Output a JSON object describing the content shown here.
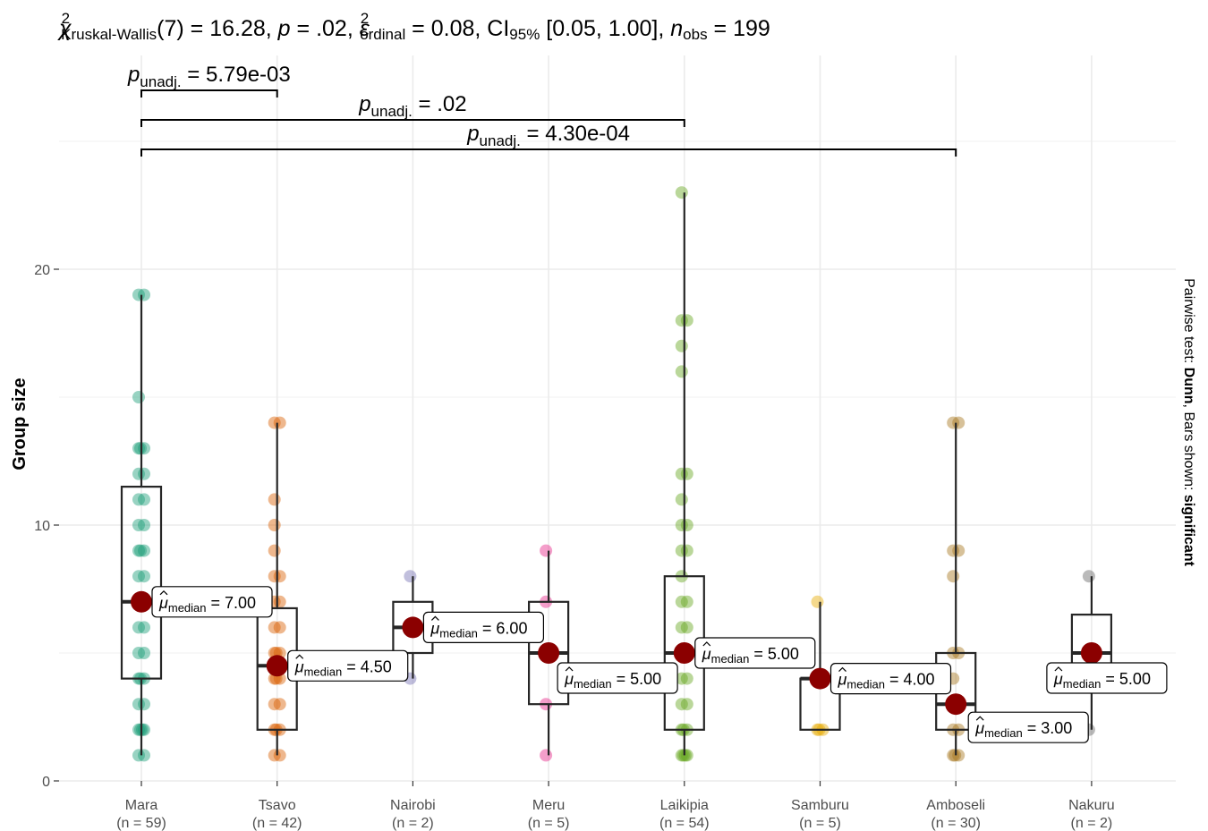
{
  "chart_data": {
    "type": "box",
    "title": {
      "stat_symbol": "χ",
      "stat_sub": "Kruskal-Wallis",
      "df_text": "(7) = 16.28, ",
      "p_text": "p",
      "p_value_text": " = .02, ",
      "effect_symbol": "ε",
      "effect_sub": "ordinal",
      "effect_text": " = 0.08, CI",
      "ci_sub": "95%",
      "ci_text": " [0.05, 1.00], ",
      "n_text": "n",
      "n_sub": "obs",
      "n_value_text": " = 199",
      "sup2": "2"
    },
    "ylabel": "Group size",
    "caption_right": {
      "part1": "Pairwise test: ",
      "part2": "Dunn",
      "part3": ", Bars shown: ",
      "part4": "significant"
    },
    "ylim": [
      0,
      25
    ],
    "y_ticks": [
      0,
      10,
      20
    ],
    "grid": true,
    "categories": [
      "Mara",
      "Tsavo",
      "Nairobi",
      "Meru",
      "Laikipia",
      "Samburu",
      "Amboseli",
      "Nakuru"
    ],
    "n_labels": [
      "(n = 59)",
      "(n = 42)",
      "(n = 2)",
      "(n = 5)",
      "(n = 54)",
      "(n = 5)",
      "(n = 30)",
      "(n = 2)"
    ],
    "colors": [
      "#1b9e77",
      "#d95f02",
      "#7570b3",
      "#e7298a",
      "#66a61e",
      "#e6ab02",
      "#a6761d",
      "#666666"
    ],
    "boxes": [
      {
        "q1": 4,
        "median": 7,
        "q3": 11.5,
        "wlo": 1,
        "whi": 19
      },
      {
        "q1": 2,
        "median": 4.5,
        "q3": 6.75,
        "wlo": 1,
        "whi": 14
      },
      {
        "q1": 5,
        "median": 6,
        "q3": 7,
        "wlo": 4,
        "whi": 8
      },
      {
        "q1": 3,
        "median": 5,
        "q3": 7,
        "wlo": 1,
        "whi": 9
      },
      {
        "q1": 2,
        "median": 5,
        "q3": 8,
        "wlo": 1,
        "whi": 23
      },
      {
        "q1": 2,
        "median": 4,
        "q3": 4,
        "wlo": 2,
        "whi": 7
      },
      {
        "q1": 2,
        "median": 3,
        "q3": 5,
        "wlo": 1,
        "whi": 14
      },
      {
        "q1": 4.5,
        "median": 5,
        "q3": 6.5,
        "wlo": 2,
        "whi": 8
      }
    ],
    "points": [
      [
        1,
        1,
        2,
        2,
        2,
        2,
        3,
        3,
        4,
        4,
        4,
        5,
        5,
        6,
        6,
        7,
        7,
        8,
        8,
        9,
        9,
        9,
        10,
        10,
        11,
        11,
        12,
        12,
        13,
        13,
        13,
        15,
        19,
        19
      ],
      [
        1,
        1,
        2,
        2,
        2,
        3,
        3,
        4,
        4,
        4,
        5,
        5,
        5,
        6,
        6,
        7,
        7,
        8,
        8,
        9,
        10,
        11,
        14,
        14
      ],
      [
        4,
        8
      ],
      [
        1,
        3,
        5,
        7,
        9
      ],
      [
        1,
        1,
        1,
        1,
        2,
        2,
        2,
        3,
        3,
        4,
        4,
        5,
        5,
        6,
        6,
        7,
        7,
        8,
        9,
        9,
        10,
        10,
        11,
        12,
        12,
        16,
        17,
        18,
        18,
        23
      ],
      [
        2,
        2,
        2,
        4,
        7
      ],
      [
        1,
        1,
        1,
        2,
        2,
        3,
        3,
        4,
        5,
        5,
        8,
        9,
        9,
        14,
        14
      ],
      [
        2,
        8
      ]
    ],
    "median_labels": [
      "= 7.00",
      "= 4.50",
      "= 6.00",
      "= 5.00",
      "= 5.00",
      "= 4.00",
      "= 3.00",
      "= 5.00"
    ],
    "median_symbol": "μ",
    "median_sub": "median",
    "comparisons": [
      {
        "from": 0,
        "to": 1,
        "sym": "p",
        "sub": "unadj.",
        "text": " = 5.79e-03"
      },
      {
        "from": 0,
        "to": 4,
        "sym": "p",
        "sub": "unadj.",
        "text": " = .02"
      },
      {
        "from": 0,
        "to": 6,
        "sym": "p",
        "sub": "unadj.",
        "text": " = 4.30e-04"
      }
    ]
  }
}
